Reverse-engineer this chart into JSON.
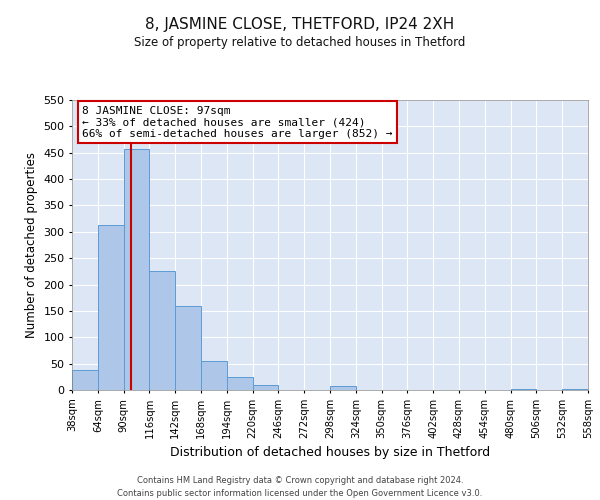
{
  "title": "8, JASMINE CLOSE, THETFORD, IP24 2XH",
  "subtitle": "Size of property relative to detached houses in Thetford",
  "xlabel": "Distribution of detached houses by size in Thetford",
  "ylabel": "Number of detached properties",
  "bin_edges": [
    38,
    64,
    90,
    116,
    142,
    168,
    194,
    220,
    246,
    272,
    298,
    324,
    350,
    376,
    402,
    428,
    454,
    480,
    506,
    532,
    558
  ],
  "bar_heights": [
    38,
    312,
    458,
    226,
    159,
    55,
    24,
    10,
    0,
    0,
    7,
    0,
    0,
    0,
    0,
    0,
    0,
    1,
    0,
    1
  ],
  "bar_color": "#aec6e8",
  "bar_edge_color": "#5b9bd5",
  "property_size": 97,
  "vline_color": "#cc0000",
  "annotation_title": "8 JASMINE CLOSE: 97sqm",
  "annotation_line1": "← 33% of detached houses are smaller (424)",
  "annotation_line2": "66% of semi-detached houses are larger (852) →",
  "annotation_box_color": "#ffffff",
  "annotation_box_edge": "#cc0000",
  "ylim": [
    0,
    550
  ],
  "yticks": [
    0,
    50,
    100,
    150,
    200,
    250,
    300,
    350,
    400,
    450,
    500,
    550
  ],
  "background_color": "#dce6f5",
  "footer_line1": "Contains HM Land Registry data © Crown copyright and database right 2024.",
  "footer_line2": "Contains public sector information licensed under the Open Government Licence v3.0."
}
